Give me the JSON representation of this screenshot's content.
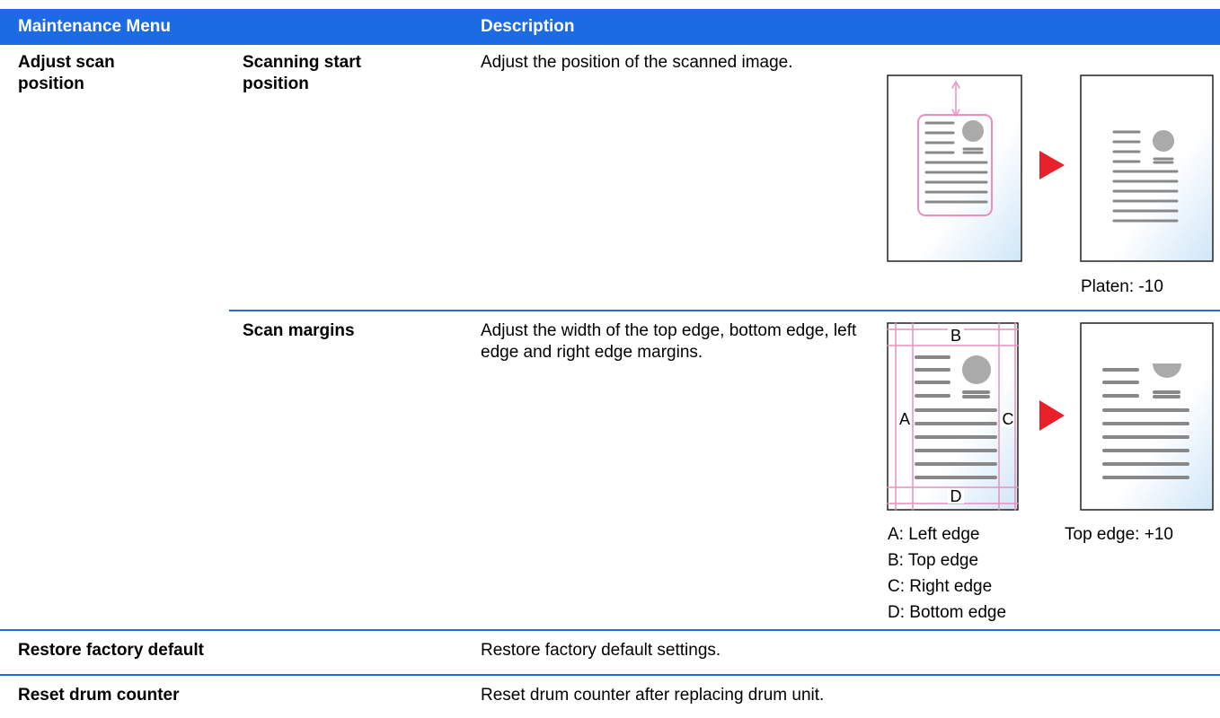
{
  "table": {
    "header": [
      "Maintenance Menu",
      "Description"
    ],
    "rows": [
      {
        "menu": "Adjust scan position",
        "items": [
          {
            "name": "Scanning start position",
            "description": "Adjust the position of the scanned image.",
            "caption": "Platen: -10"
          },
          {
            "name": "Scan margins",
            "description": "Adjust the width of the top edge, bottom edge, left edge and right edge margins.",
            "labels": [
              "A",
              "B",
              "C",
              "D"
            ],
            "legend": [
              "A: Left edge",
              "B: Top edge",
              "C: Right edge",
              "D: Bottom edge"
            ],
            "caption": "Top edge: +10"
          }
        ]
      },
      {
        "menu": "Restore factory default",
        "description": "Restore factory default settings."
      },
      {
        "menu": "Reset drum counter",
        "description": "Reset drum counter after replacing drum unit."
      }
    ]
  }
}
